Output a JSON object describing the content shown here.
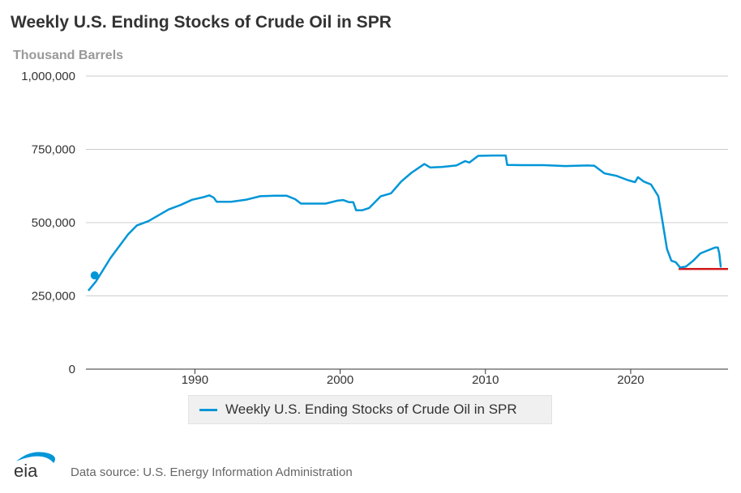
{
  "header": {
    "title": "Weekly U.S. Ending Stocks of Crude Oil in SPR",
    "subtitle": "Thousand Barrels"
  },
  "legend": {
    "label": "Weekly U.S. Ending Stocks of Crude Oil in SPR"
  },
  "footer": {
    "logo_text": "eia",
    "source": "Data source: U.S. Energy Information Administration"
  },
  "colors": {
    "series": "#0096d7",
    "reference_line": "#d0191b",
    "grid": "#cccccc"
  },
  "chart_data": {
    "type": "line",
    "title": "Weekly U.S. Ending Stocks of Crude Oil in SPR",
    "ylabel": "Thousand Barrels",
    "xlabel": "",
    "xlim": [
      1982.5,
      2026.7
    ],
    "ylim": [
      0,
      1000000
    ],
    "yticks": [
      0,
      250000,
      500000,
      750000,
      1000000
    ],
    "ytick_labels": [
      "0",
      "250,000",
      "500,000",
      "750,000",
      "1,000,000"
    ],
    "xticks": [
      1990,
      2000,
      2010,
      2020
    ],
    "xtick_labels": [
      "1990",
      "2000",
      "2010",
      "2020"
    ],
    "grid": true,
    "legend_position": "bottom-center",
    "series": [
      {
        "name": "Weekly U.S. Ending Stocks of Crude Oil in SPR",
        "color": "#0096d7",
        "x": [
          1982.7,
          1983.2,
          1983.7,
          1984.2,
          1984.8,
          1985.4,
          1986.0,
          1986.8,
          1987.5,
          1988.2,
          1989.0,
          1989.8,
          1990.6,
          1991.0,
          1991.3,
          1991.5,
          1992.5,
          1993.5,
          1994.5,
          1995.5,
          1996.3,
          1996.9,
          1997.3,
          1998.0,
          1999.0,
          1999.8,
          2000.2,
          2000.6,
          2000.9,
          2001.1,
          2001.5,
          2002.0,
          2002.8,
          2003.5,
          2004.2,
          2004.9,
          2005.5,
          2005.8,
          2006.2,
          2007.0,
          2008.0,
          2008.6,
          2008.9,
          2009.5,
          2010.5,
          2011.4,
          2011.5,
          2012.5,
          2014.0,
          2015.5,
          2017.0,
          2017.5,
          2018.2,
          2019.0,
          2019.8,
          2020.3,
          2020.5,
          2020.9,
          2021.4,
          2021.9,
          2022.2,
          2022.5,
          2022.8,
          2023.1,
          2023.4,
          2023.8,
          2024.3,
          2024.8,
          2025.3,
          2025.8,
          2026.0,
          2026.1,
          2026.2
        ],
        "y": [
          270000,
          300000,
          340000,
          380000,
          420000,
          460000,
          490000,
          505000,
          525000,
          545000,
          560000,
          578000,
          587000,
          593000,
          585000,
          571000,
          571000,
          578000,
          590000,
          592000,
          592000,
          580000,
          565000,
          565000,
          565000,
          575000,
          577000,
          570000,
          570000,
          542000,
          542000,
          550000,
          590000,
          600000,
          640000,
          670000,
          690000,
          700000,
          688000,
          690000,
          695000,
          710000,
          705000,
          728000,
          729000,
          729000,
          697000,
          696000,
          696000,
          693000,
          695000,
          694000,
          668000,
          660000,
          645000,
          638000,
          655000,
          640000,
          630000,
          590000,
          500000,
          410000,
          370000,
          365000,
          347000,
          350000,
          370000,
          395000,
          405000,
          415000,
          415000,
          395000,
          350000
        ]
      }
    ],
    "markers": [
      {
        "x": 1983.1,
        "y": 320000,
        "color": "#0096d7"
      }
    ],
    "reference_lines": [
      {
        "x_start": 2023.3,
        "x_end": 2026.7,
        "y": 342000,
        "color": "#d0191b"
      }
    ]
  }
}
